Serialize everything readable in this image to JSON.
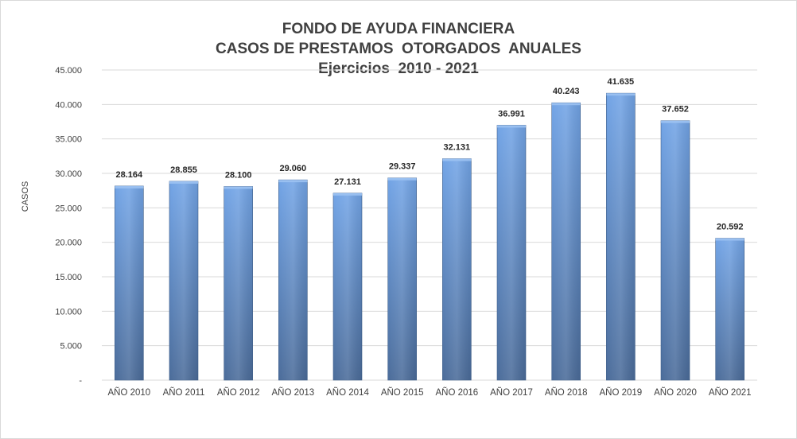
{
  "chart_data": {
    "type": "bar",
    "title": [
      "FONDO DE AYUDA FINANCIERA",
      "CASOS DE PRESTAMOS  OTORGADOS  ANUALES",
      "Ejercicios  2010 - 2021"
    ],
    "ylabel": "CASOS",
    "xlabel": "",
    "ylim": [
      0,
      45000
    ],
    "ytick_values": [
      0,
      5000,
      10000,
      15000,
      20000,
      25000,
      30000,
      35000,
      40000,
      45000
    ],
    "ytick_labels": [
      "-",
      "5.000",
      "10.000",
      "15.000",
      "20.000",
      "25.000",
      "30.000",
      "35.000",
      "40.000",
      "45.000"
    ],
    "grid": true,
    "legend": "none",
    "categories": [
      "AÑO 2010",
      "AÑO 2011",
      "AÑO 2012",
      "AÑO 2013",
      "AÑO 2014",
      "AÑO 2015",
      "AÑO 2016",
      "AÑO 2017",
      "AÑO 2018",
      "AÑO 2019",
      "AÑO 2020",
      "AÑO 2021"
    ],
    "values": [
      28164,
      28855,
      28100,
      29060,
      27131,
      29337,
      32131,
      36991,
      40243,
      41635,
      37652,
      20592
    ],
    "data_labels": [
      "28.164",
      "28.855",
      "28.100",
      "29.060",
      "27.131",
      "29.337",
      "32.131",
      "36.991",
      "40.243",
      "41.635",
      "37.652",
      "20.592"
    ],
    "colors": {
      "bar_top": "#6fa1e2",
      "bar_bottom": "#4a6e9e",
      "grid": "#d9d9d9",
      "text": "#404040"
    }
  }
}
